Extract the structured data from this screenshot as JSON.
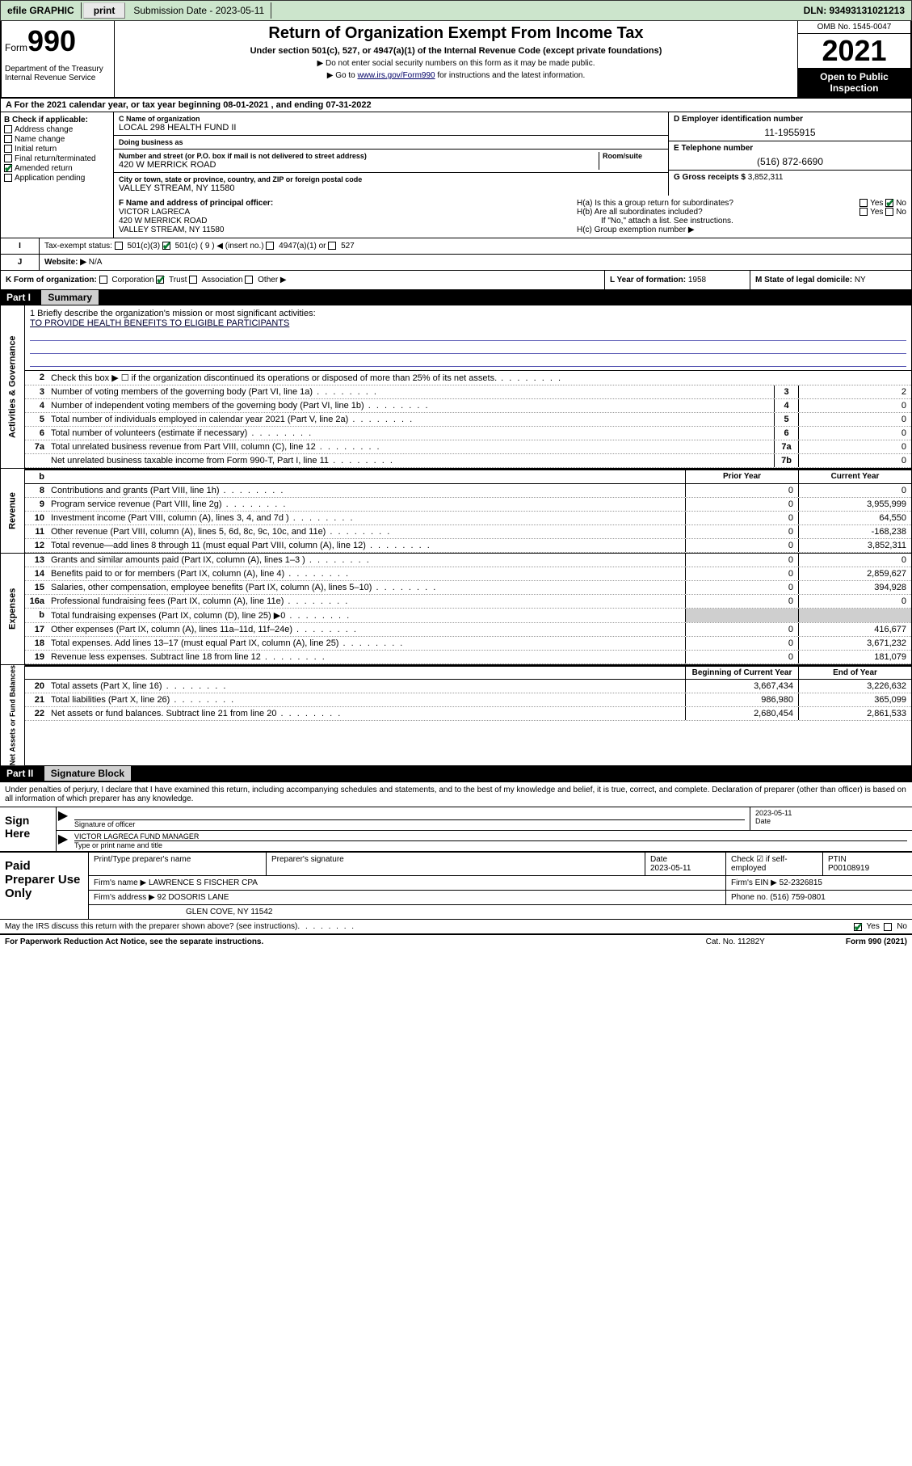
{
  "topbar": {
    "efile": "efile GRAPHIC",
    "print": "print",
    "sub_label": "Submission Date - 2023-05-11",
    "dln": "DLN: 93493131021213"
  },
  "header": {
    "form_word": "Form",
    "form_num": "990",
    "dept": "Department of the Treasury Internal Revenue Service",
    "title": "Return of Organization Exempt From Income Tax",
    "sub": "Under section 501(c), 527, or 4947(a)(1) of the Internal Revenue Code (except private foundations)",
    "note1": "▶ Do not enter social security numbers on this form as it may be made public.",
    "note2_pre": "▶ Go to ",
    "note2_link": "www.irs.gov/Form990",
    "note2_post": " for instructions and the latest information.",
    "omb": "OMB No. 1545-0047",
    "year": "2021",
    "open": "Open to Public Inspection"
  },
  "row_a": "A For the 2021 calendar year, or tax year beginning 08-01-2021   , and ending 07-31-2022",
  "box_b": {
    "label": "B Check if applicable:",
    "items": [
      "Address change",
      "Name change",
      "Initial return",
      "Final return/terminated",
      "Amended return",
      "Application pending"
    ],
    "checked_idx": 4
  },
  "box_c": {
    "name_lbl": "C Name of organization",
    "name": "LOCAL 298 HEALTH FUND II",
    "dba_lbl": "Doing business as",
    "dba": "",
    "street_lbl": "Number and street (or P.O. box if mail is not delivered to street address)",
    "room_lbl": "Room/suite",
    "street": "420 W MERRICK ROAD",
    "city_lbl": "City or town, state or province, country, and ZIP or foreign postal code",
    "city": "VALLEY STREAM, NY  11580"
  },
  "box_d": {
    "lbl": "D Employer identification number",
    "val": "11-1955915"
  },
  "box_e": {
    "lbl": "E Telephone number",
    "val": "(516) 872-6690"
  },
  "box_g": {
    "lbl": "G Gross receipts $",
    "val": "3,852,311"
  },
  "box_f": {
    "lbl": "F Name and address of principal officer:",
    "name": "VICTOR LAGRECA",
    "addr1": "420 W MERRICK ROAD",
    "addr2": "VALLEY STREAM, NY  11580"
  },
  "box_h": {
    "a": "H(a)  Is this a group return for subordinates?",
    "b": "H(b)  Are all subordinates included?",
    "b_note": "If \"No,\" attach a list. See instructions.",
    "c": "H(c)  Group exemption number ▶",
    "yes": "Yes",
    "no": "No"
  },
  "row_i": {
    "lbl": "Tax-exempt status:",
    "opts": [
      "501(c)(3)",
      "501(c) ( 9 ) ◀ (insert no.)",
      "4947(a)(1) or",
      "527"
    ],
    "checked_idx": 1
  },
  "row_j": {
    "lbl": "J",
    "txt": "Website: ▶",
    "val": "N/A"
  },
  "row_k": {
    "lbl": "K Form of organization:",
    "opts": [
      "Corporation",
      "Trust",
      "Association",
      "Other ▶"
    ],
    "checked_idx": 1
  },
  "row_l": {
    "lbl": "L Year of formation:",
    "val": "1958"
  },
  "row_m": {
    "lbl": "M State of legal domicile:",
    "val": "NY"
  },
  "part1": {
    "hdr": "Part I",
    "sub": "Summary"
  },
  "mission": {
    "q": "1   Briefly describe the organization's mission or most significant activities:",
    "a": "TO PROVIDE HEALTH BENEFITS TO ELIGIBLE PARTICIPANTS"
  },
  "governance_rows": [
    {
      "n": "2",
      "t": "Check this box ▶ ☐  if the organization discontinued its operations or disposed of more than 25% of its net assets.",
      "box": "",
      "v": ""
    },
    {
      "n": "3",
      "t": "Number of voting members of the governing body (Part VI, line 1a)",
      "box": "3",
      "v": "2"
    },
    {
      "n": "4",
      "t": "Number of independent voting members of the governing body (Part VI, line 1b)",
      "box": "4",
      "v": "0"
    },
    {
      "n": "5",
      "t": "Total number of individuals employed in calendar year 2021 (Part V, line 2a)",
      "box": "5",
      "v": "0"
    },
    {
      "n": "6",
      "t": "Total number of volunteers (estimate if necessary)",
      "box": "6",
      "v": "0"
    },
    {
      "n": "7a",
      "t": "Total unrelated business revenue from Part VIII, column (C), line 12",
      "box": "7a",
      "v": "0"
    },
    {
      "n": "",
      "t": "Net unrelated business taxable income from Form 990-T, Part I, line 11",
      "box": "7b",
      "v": "0"
    }
  ],
  "col_hdrs": {
    "b": "b",
    "prior": "Prior Year",
    "curr": "Current Year"
  },
  "revenue_rows": [
    {
      "n": "8",
      "t": "Contributions and grants (Part VIII, line 1h)",
      "p": "0",
      "c": "0"
    },
    {
      "n": "9",
      "t": "Program service revenue (Part VIII, line 2g)",
      "p": "0",
      "c": "3,955,999"
    },
    {
      "n": "10",
      "t": "Investment income (Part VIII, column (A), lines 3, 4, and 7d )",
      "p": "0",
      "c": "64,550"
    },
    {
      "n": "11",
      "t": "Other revenue (Part VIII, column (A), lines 5, 6d, 8c, 9c, 10c, and 11e)",
      "p": "0",
      "c": "-168,238"
    },
    {
      "n": "12",
      "t": "Total revenue—add lines 8 through 11 (must equal Part VIII, column (A), line 12)",
      "p": "0",
      "c": "3,852,311"
    }
  ],
  "expense_rows": [
    {
      "n": "13",
      "t": "Grants and similar amounts paid (Part IX, column (A), lines 1–3 )",
      "p": "0",
      "c": "0"
    },
    {
      "n": "14",
      "t": "Benefits paid to or for members (Part IX, column (A), line 4)",
      "p": "0",
      "c": "2,859,627"
    },
    {
      "n": "15",
      "t": "Salaries, other compensation, employee benefits (Part IX, column (A), lines 5–10)",
      "p": "0",
      "c": "394,928"
    },
    {
      "n": "16a",
      "t": "Professional fundraising fees (Part IX, column (A), line 11e)",
      "p": "0",
      "c": "0"
    },
    {
      "n": "b",
      "t": "Total fundraising expenses (Part IX, column (D), line 25) ▶0",
      "p": "shade",
      "c": "shade"
    },
    {
      "n": "17",
      "t": "Other expenses (Part IX, column (A), lines 11a–11d, 11f–24e)",
      "p": "0",
      "c": "416,677"
    },
    {
      "n": "18",
      "t": "Total expenses. Add lines 13–17 (must equal Part IX, column (A), line 25)",
      "p": "0",
      "c": "3,671,232"
    },
    {
      "n": "19",
      "t": "Revenue less expenses. Subtract line 18 from line 12",
      "p": "0",
      "c": "181,079"
    }
  ],
  "na_hdrs": {
    "beg": "Beginning of Current Year",
    "end": "End of Year"
  },
  "na_rows": [
    {
      "n": "20",
      "t": "Total assets (Part X, line 16)",
      "p": "3,667,434",
      "c": "3,226,632"
    },
    {
      "n": "21",
      "t": "Total liabilities (Part X, line 26)",
      "p": "986,980",
      "c": "365,099"
    },
    {
      "n": "22",
      "t": "Net assets or fund balances. Subtract line 21 from line 20",
      "p": "2,680,454",
      "c": "2,861,533"
    }
  ],
  "sides": {
    "gov": "Activities & Governance",
    "rev": "Revenue",
    "exp": "Expenses",
    "na": "Net Assets or Fund Balances"
  },
  "part2": {
    "hdr": "Part II",
    "sub": "Signature Block"
  },
  "decl": "Under penalties of perjury, I declare that I have examined this return, including accompanying schedules and statements, and to the best of my knowledge and belief, it is true, correct, and complete. Declaration of preparer (other than officer) is based on all information of which preparer has any knowledge.",
  "sign": {
    "here": "Sign Here",
    "sig_lbl": "Signature of officer",
    "date_lbl": "Date",
    "date": "2023-05-11",
    "name": "VICTOR LAGRECA  FUND MANAGER",
    "name_lbl": "Type or print name and title"
  },
  "prep": {
    "here": "Paid Preparer Use Only",
    "h_name": "Print/Type preparer's name",
    "h_sig": "Preparer's signature",
    "h_date": "Date",
    "date": "2023-05-11",
    "h_self": "Check ☑ if self-employed",
    "h_ptin": "PTIN",
    "ptin": "P00108919",
    "firm_lbl": "Firm's name    ▶",
    "firm": "LAWRENCE S FISCHER CPA",
    "ein_lbl": "Firm's EIN ▶",
    "ein": "52-2326815",
    "addr_lbl": "Firm's address ▶",
    "addr1": "92 DOSORIS LANE",
    "addr2": "GLEN COVE, NY  11542",
    "phone_lbl": "Phone no.",
    "phone": "(516) 759-0801"
  },
  "foot": {
    "discuss": "May the IRS discuss this return with the preparer shown above? (see instructions)",
    "yes": "Yes",
    "no": "No",
    "pra": "For Paperwork Reduction Act Notice, see the separate instructions.",
    "cat": "Cat. No. 11282Y",
    "form": "Form 990 (2021)"
  }
}
